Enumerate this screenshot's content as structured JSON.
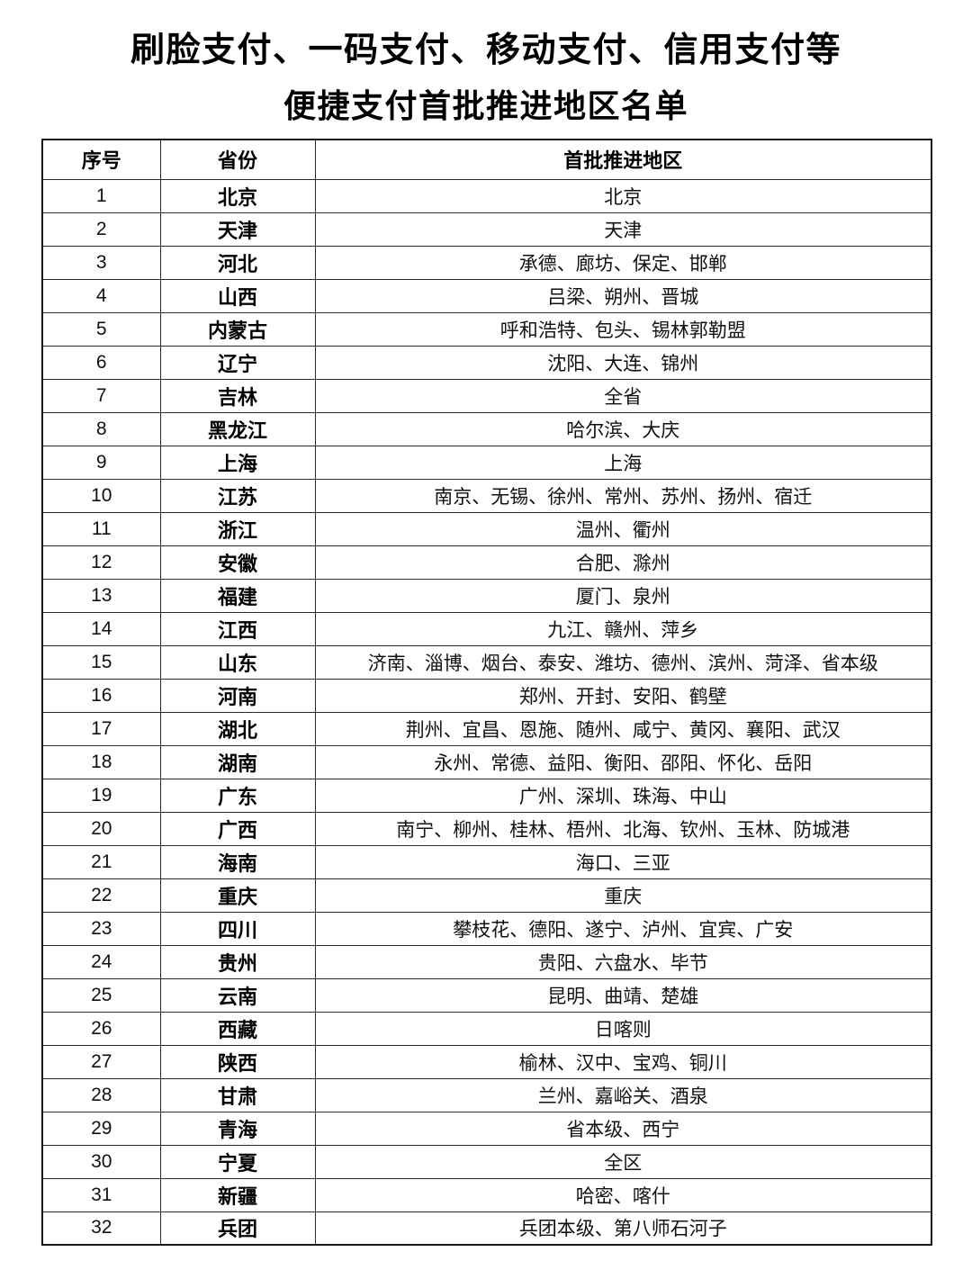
{
  "doc": {
    "title_line1": "刷脸支付、一码支付、移动支付、信用支付等",
    "title_line2": "便捷支付首批推进地区名单"
  },
  "table": {
    "headers": [
      "序号",
      "省份",
      "首批推进地区"
    ],
    "rows": [
      {
        "no": "1",
        "province": "北京",
        "regions": "北京"
      },
      {
        "no": "2",
        "province": "天津",
        "regions": "天津"
      },
      {
        "no": "3",
        "province": "河北",
        "regions": "承德、廊坊、保定、邯郸"
      },
      {
        "no": "4",
        "province": "山西",
        "regions": "吕梁、朔州、晋城"
      },
      {
        "no": "5",
        "province": "内蒙古",
        "regions": "呼和浩特、包头、锡林郭勒盟"
      },
      {
        "no": "6",
        "province": "辽宁",
        "regions": "沈阳、大连、锦州"
      },
      {
        "no": "7",
        "province": "吉林",
        "regions": "全省"
      },
      {
        "no": "8",
        "province": "黑龙江",
        "regions": "哈尔滨、大庆"
      },
      {
        "no": "9",
        "province": "上海",
        "regions": "上海"
      },
      {
        "no": "10",
        "province": "江苏",
        "regions": "南京、无锡、徐州、常州、苏州、扬州、宿迁"
      },
      {
        "no": "11",
        "province": "浙江",
        "regions": "温州、衢州"
      },
      {
        "no": "12",
        "province": "安徽",
        "regions": "合肥、滁州"
      },
      {
        "no": "13",
        "province": "福建",
        "regions": "厦门、泉州"
      },
      {
        "no": "14",
        "province": "江西",
        "regions": "九江、赣州、萍乡"
      },
      {
        "no": "15",
        "province": "山东",
        "regions": "济南、淄博、烟台、泰安、潍坊、德州、滨州、菏泽、省本级"
      },
      {
        "no": "16",
        "province": "河南",
        "regions": "郑州、开封、安阳、鹤壁"
      },
      {
        "no": "17",
        "province": "湖北",
        "regions": "荆州、宜昌、恩施、随州、咸宁、黄冈、襄阳、武汉"
      },
      {
        "no": "18",
        "province": "湖南",
        "regions": "永州、常德、益阳、衡阳、邵阳、怀化、岳阳"
      },
      {
        "no": "19",
        "province": "广东",
        "regions": "广州、深圳、珠海、中山"
      },
      {
        "no": "20",
        "province": "广西",
        "regions": "南宁、柳州、桂林、梧州、北海、钦州、玉林、防城港"
      },
      {
        "no": "21",
        "province": "海南",
        "regions": "海口、三亚"
      },
      {
        "no": "22",
        "province": "重庆",
        "regions": "重庆"
      },
      {
        "no": "23",
        "province": "四川",
        "regions": "攀枝花、德阳、遂宁、泸州、宜宾、广安"
      },
      {
        "no": "24",
        "province": "贵州",
        "regions": "贵阳、六盘水、毕节"
      },
      {
        "no": "25",
        "province": "云南",
        "regions": "昆明、曲靖、楚雄"
      },
      {
        "no": "26",
        "province": "西藏",
        "regions": "日喀则"
      },
      {
        "no": "27",
        "province": "陕西",
        "regions": "榆林、汉中、宝鸡、铜川"
      },
      {
        "no": "28",
        "province": "甘肃",
        "regions": "兰州、嘉峪关、酒泉"
      },
      {
        "no": "29",
        "province": "青海",
        "regions": "省本级、西宁"
      },
      {
        "no": "30",
        "province": "宁夏",
        "regions": "全区"
      },
      {
        "no": "31",
        "province": "新疆",
        "regions": "哈密、喀什"
      },
      {
        "no": "32",
        "province": "兵团",
        "regions": "兵团本级、第八师石河子"
      }
    ]
  }
}
